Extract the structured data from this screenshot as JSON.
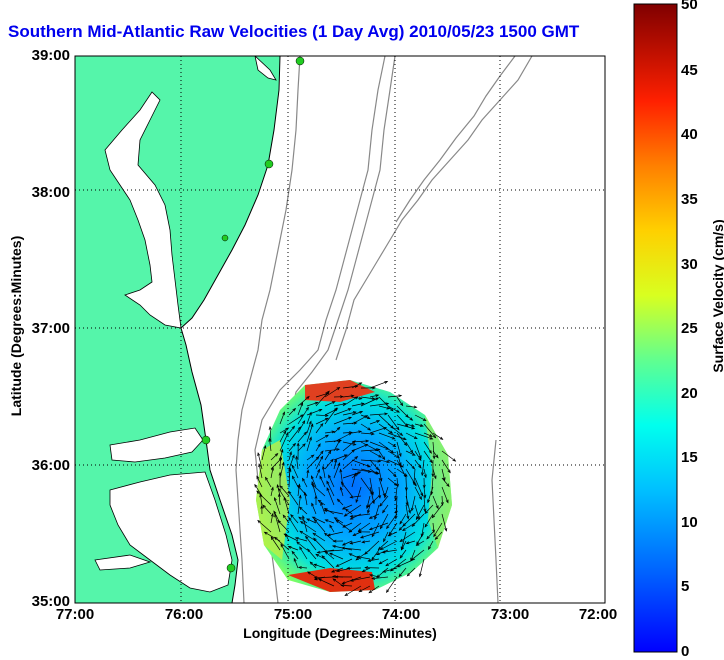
{
  "title": "Southern Mid-Atlantic Raw Velocities (1 Day Avg) 2010/05/23 1500 GMT",
  "xlabel": "Longitude (Degrees:Minutes)",
  "ylabel": "Latitude (Degrees:Minutes)",
  "colorbar_label": "Surface Velocity (cm/s)",
  "x_ticks": [
    "77:00",
    "76:00",
    "75:00",
    "74:00",
    "73:00",
    "72:00"
  ],
  "y_ticks": [
    "39:00",
    "38:00",
    "37:00",
    "36:00",
    "35:00"
  ],
  "colorbar_ticks": [
    "50",
    "45",
    "40",
    "35",
    "30",
    "25",
    "20",
    "15",
    "10",
    "5",
    "0"
  ],
  "map": {
    "lon_range": [
      -77,
      -72
    ],
    "lat_range": [
      35,
      39
    ],
    "grid": "dotted",
    "land_color": "#55f5aa",
    "coast_color": "#000000",
    "bathymetry_color": "#888888",
    "station_color": "#22cc22",
    "arrow_color": "#000000"
  },
  "colorbar": {
    "min": 0,
    "max": 50,
    "colormap": "jet"
  }
}
